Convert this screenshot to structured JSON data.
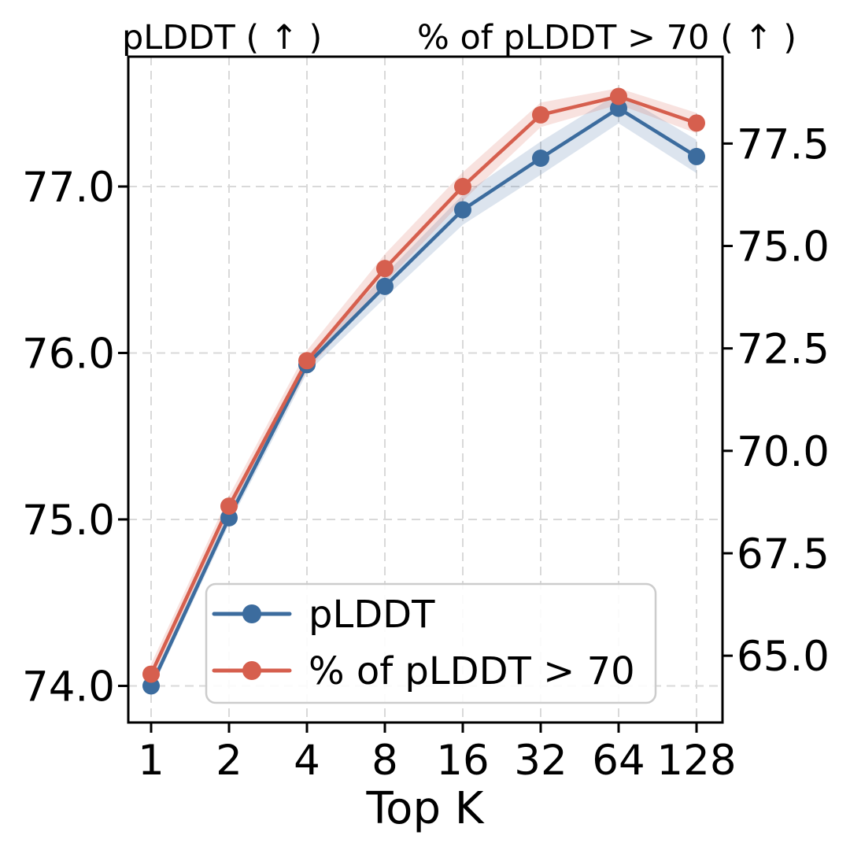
{
  "figure": {
    "title_left": "pLDDT ( ↑ )",
    "title_right": "% of pLDDT > 70 ( ↑ )",
    "xlabel": "Top K"
  },
  "axes": {
    "x_tick_labels": [
      "1",
      "2",
      "4",
      "8",
      "16",
      "32",
      "64",
      "128"
    ],
    "y_left_tick_labels": [
      "74.0",
      "75.0",
      "76.0",
      "77.0"
    ],
    "y_right_tick_labels": [
      "65.0",
      "67.5",
      "70.0",
      "72.5",
      "75.0",
      "77.5"
    ]
  },
  "legend": {
    "items": [
      {
        "label": "pLDDT",
        "color": "#3c6c9e"
      },
      {
        "label": "% of pLDDT > 70",
        "color": "#d65f4e"
      }
    ]
  },
  "colors": {
    "blue_series": "#3c6c9e",
    "red_series": "#d65f4e",
    "grid": "#d9d9d9",
    "spine": "#000000",
    "legend_border": "#cccccc",
    "background": "#ffffff"
  },
  "chart_data": {
    "type": "line",
    "x_scale": "log2",
    "x": [
      1,
      2,
      4,
      8,
      16,
      32,
      64,
      128
    ],
    "grid": true,
    "legend_position": "lower left inside plot",
    "xlabel": "Top K",
    "y_left": {
      "title": "pLDDT ( ↑ )",
      "ticks": [
        74.0,
        75.0,
        76.0,
        77.0
      ],
      "range": [
        73.78,
        77.78
      ]
    },
    "y_right": {
      "title": "% of pLDDT > 70 ( ↑ )",
      "ticks": [
        65.0,
        67.5,
        70.0,
        72.5,
        75.0,
        77.5
      ],
      "range": [
        63.37,
        79.62
      ]
    },
    "series": [
      {
        "name": "pLDDT",
        "axis": "left",
        "color": "#3c6c9e",
        "values": [
          74.0,
          75.01,
          75.93,
          76.4,
          76.86,
          77.17,
          77.47,
          77.18
        ],
        "band_low": [
          73.97,
          74.97,
          75.88,
          76.33,
          76.77,
          77.07,
          77.38,
          77.08
        ],
        "band_high": [
          74.03,
          75.05,
          75.98,
          76.47,
          76.95,
          77.27,
          77.56,
          77.28
        ]
      },
      {
        "name": "% of pLDDT > 70",
        "axis": "right",
        "color": "#d65f4e",
        "values": [
          64.55,
          68.65,
          72.2,
          74.45,
          76.45,
          78.2,
          78.65,
          78.0
        ],
        "band_low": [
          64.3,
          68.4,
          71.95,
          74.1,
          76.1,
          77.9,
          78.45,
          77.75
        ],
        "band_high": [
          64.8,
          68.9,
          72.45,
          74.8,
          76.8,
          78.5,
          78.85,
          78.25
        ]
      }
    ]
  }
}
